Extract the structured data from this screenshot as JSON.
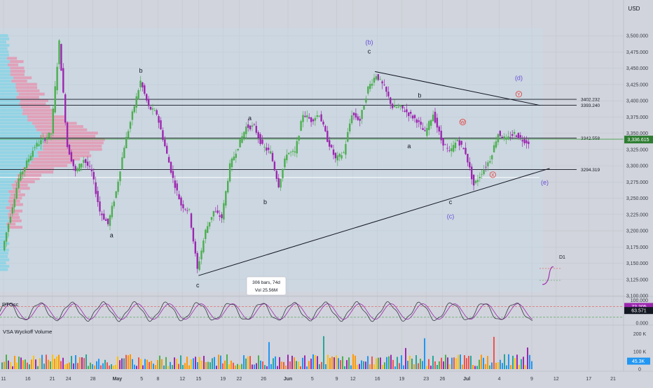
{
  "header": {
    "currency": "USD"
  },
  "colors": {
    "bull": "#4caf50",
    "bear": "#9c27b0",
    "tick": "#363a45",
    "wave_purple": "#6a4fd6",
    "wave_red": "#e53935",
    "green_line": "#43a047"
  },
  "chart_data": {
    "type": "candlestick",
    "title": "",
    "price_axis": {
      "ylim": [
        3100,
        3525
      ],
      "ticks": [
        "3,500.000",
        "3,475.000",
        "3,450.000",
        "3,425.000",
        "3,400.000",
        "3,375.000",
        "3,350.000",
        "3,325.000",
        "3,300.000",
        "3,275.000",
        "3,250.000",
        "3,225.000",
        "3,200.000",
        "3,175.000",
        "3,150.000",
        "3,125.000",
        "3,100.000"
      ],
      "current_price": {
        "value": 3336.615,
        "label": "3,336.615"
      }
    },
    "x_axis": {
      "labels": [
        "11",
        "16",
        "21",
        "24",
        "28",
        "May",
        "5",
        "8",
        "12",
        "15",
        "19",
        "22",
        "26",
        "Jun",
        "5",
        "9",
        "12",
        "16",
        "19",
        "23",
        "26",
        "Jul",
        "4",
        "9",
        "12",
        "17",
        "21"
      ],
      "day_index": [
        0,
        3,
        6,
        8,
        11,
        14,
        17,
        19,
        22,
        24,
        27,
        29,
        32,
        35,
        38,
        41,
        43,
        46,
        49,
        52,
        54,
        57,
        61,
        65,
        68,
        72,
        75
      ]
    },
    "grid": true,
    "levels": [
      {
        "value": 3402.232,
        "label": "3402.232"
      },
      {
        "value": 3393.24,
        "label": "3393.240"
      },
      {
        "value": 3342.558,
        "label": "3342.558"
      },
      {
        "value": 3294.319,
        "label": "3294.319"
      }
    ],
    "anchor_path": [
      [
        0,
        3170
      ],
      [
        2,
        3280
      ],
      [
        4,
        3330
      ],
      [
        6,
        3350
      ],
      [
        7,
        3490
      ],
      [
        8,
        3330
      ],
      [
        9,
        3290
      ],
      [
        10,
        3310
      ],
      [
        11,
        3290
      ],
      [
        12,
        3230
      ],
      [
        13,
        3210
      ],
      [
        14,
        3260
      ],
      [
        15,
        3330
      ],
      [
        16,
        3380
      ],
      [
        17,
        3430
      ],
      [
        18,
        3390
      ],
      [
        19,
        3380
      ],
      [
        20,
        3330
      ],
      [
        21,
        3280
      ],
      [
        22,
        3240
      ],
      [
        23,
        3230
      ],
      [
        24,
        3140
      ],
      [
        25,
        3200
      ],
      [
        26,
        3230
      ],
      [
        27,
        3220
      ],
      [
        28,
        3300
      ],
      [
        29,
        3330
      ],
      [
        30,
        3360
      ],
      [
        31,
        3360
      ],
      [
        32,
        3330
      ],
      [
        33,
        3320
      ],
      [
        34,
        3270
      ],
      [
        35,
        3320
      ],
      [
        36,
        3320
      ],
      [
        37,
        3380
      ],
      [
        38,
        3370
      ],
      [
        39,
        3380
      ],
      [
        40,
        3340
      ],
      [
        41,
        3310
      ],
      [
        42,
        3320
      ],
      [
        43,
        3380
      ],
      [
        44,
        3370
      ],
      [
        45,
        3420
      ],
      [
        46,
        3440
      ],
      [
        47,
        3420
      ],
      [
        48,
        3390
      ],
      [
        49,
        3390
      ],
      [
        50,
        3380
      ],
      [
        51,
        3370
      ],
      [
        52,
        3350
      ],
      [
        53,
        3380
      ],
      [
        54,
        3340
      ],
      [
        55,
        3320
      ],
      [
        56,
        3340
      ],
      [
        57,
        3320
      ],
      [
        58,
        3270
      ],
      [
        59,
        3290
      ],
      [
        60,
        3310
      ],
      [
        61,
        3350
      ],
      [
        62,
        3340
      ],
      [
        63,
        3350
      ],
      [
        64,
        3340
      ],
      [
        64.6,
        3336.615
      ]
    ],
    "wave_labels": [
      {
        "text": "b",
        "day": 16.9,
        "price": 3443,
        "color": "dark"
      },
      {
        "text": "a",
        "day": 13.3,
        "price": 3190,
        "color": "dark"
      },
      {
        "text": "c",
        "day": 23.9,
        "price": 3113,
        "color": "dark"
      },
      {
        "text": "a",
        "day": 30.3,
        "price": 3370,
        "color": "dark"
      },
      {
        "text": "b",
        "day": 32.2,
        "price": 3241,
        "color": "dark"
      },
      {
        "text": "(b)",
        "day": 45.0,
        "price": 3487,
        "color": "purple"
      },
      {
        "text": "c",
        "day": 45.0,
        "price": 3473,
        "color": "dark"
      },
      {
        "text": "b",
        "day": 51.2,
        "price": 3405,
        "color": "dark"
      },
      {
        "text": "a",
        "day": 49.9,
        "price": 3327,
        "color": "dark"
      },
      {
        "text": "c",
        "day": 55.0,
        "price": 3241,
        "color": "dark"
      },
      {
        "text": "(c)",
        "day": 55.0,
        "price": 3219,
        "color": "purple"
      },
      {
        "text": "(d)",
        "day": 63.4,
        "price": 3432,
        "color": "purple"
      },
      {
        "text": "(e)",
        "day": 66.6,
        "price": 3271,
        "color": "purple"
      }
    ],
    "circle_labels": [
      {
        "text": "W",
        "day": 56.5,
        "price": 3364
      },
      {
        "text": "Y",
        "day": 63.4,
        "price": 3407
      },
      {
        "text": "X",
        "day": 60.2,
        "price": 3283
      }
    ],
    "trendlines": [
      {
        "name": "upper",
        "from": [
          45.7,
          3445
        ],
        "to": [
          66.0,
          3393
        ]
      },
      {
        "name": "lower",
        "from": [
          24.0,
          3131
        ],
        "to": [
          67.2,
          3296
        ]
      }
    ],
    "measure_label": {
      "line1": "306 bars, 74d",
      "line2": "Vol 25.56M"
    },
    "oscillator": {
      "name": "DTOsc",
      "ylim": [
        0,
        110
      ],
      "ticks": [
        {
          "v": 100,
          "label": "100.000"
        },
        {
          "v": 0,
          "label": "0.000"
        }
      ],
      "upper_band": 72.205,
      "lower_band": 25,
      "value1": {
        "v": 72.205,
        "label": "72.205"
      },
      "value2": {
        "v": 63.571,
        "label": "63.571"
      }
    },
    "volume": {
      "name": "VSA Wyckoff Volume",
      "ticks": [
        {
          "v": 200,
          "label": "200 K"
        },
        {
          "v": 100,
          "label": "100 K"
        },
        {
          "v": 0,
          "label": "0"
        }
      ],
      "current": {
        "v": 45.3,
        "label": "45.3K"
      },
      "ymax": 230
    },
    "timeframe_inset": {
      "label": "D1"
    }
  }
}
